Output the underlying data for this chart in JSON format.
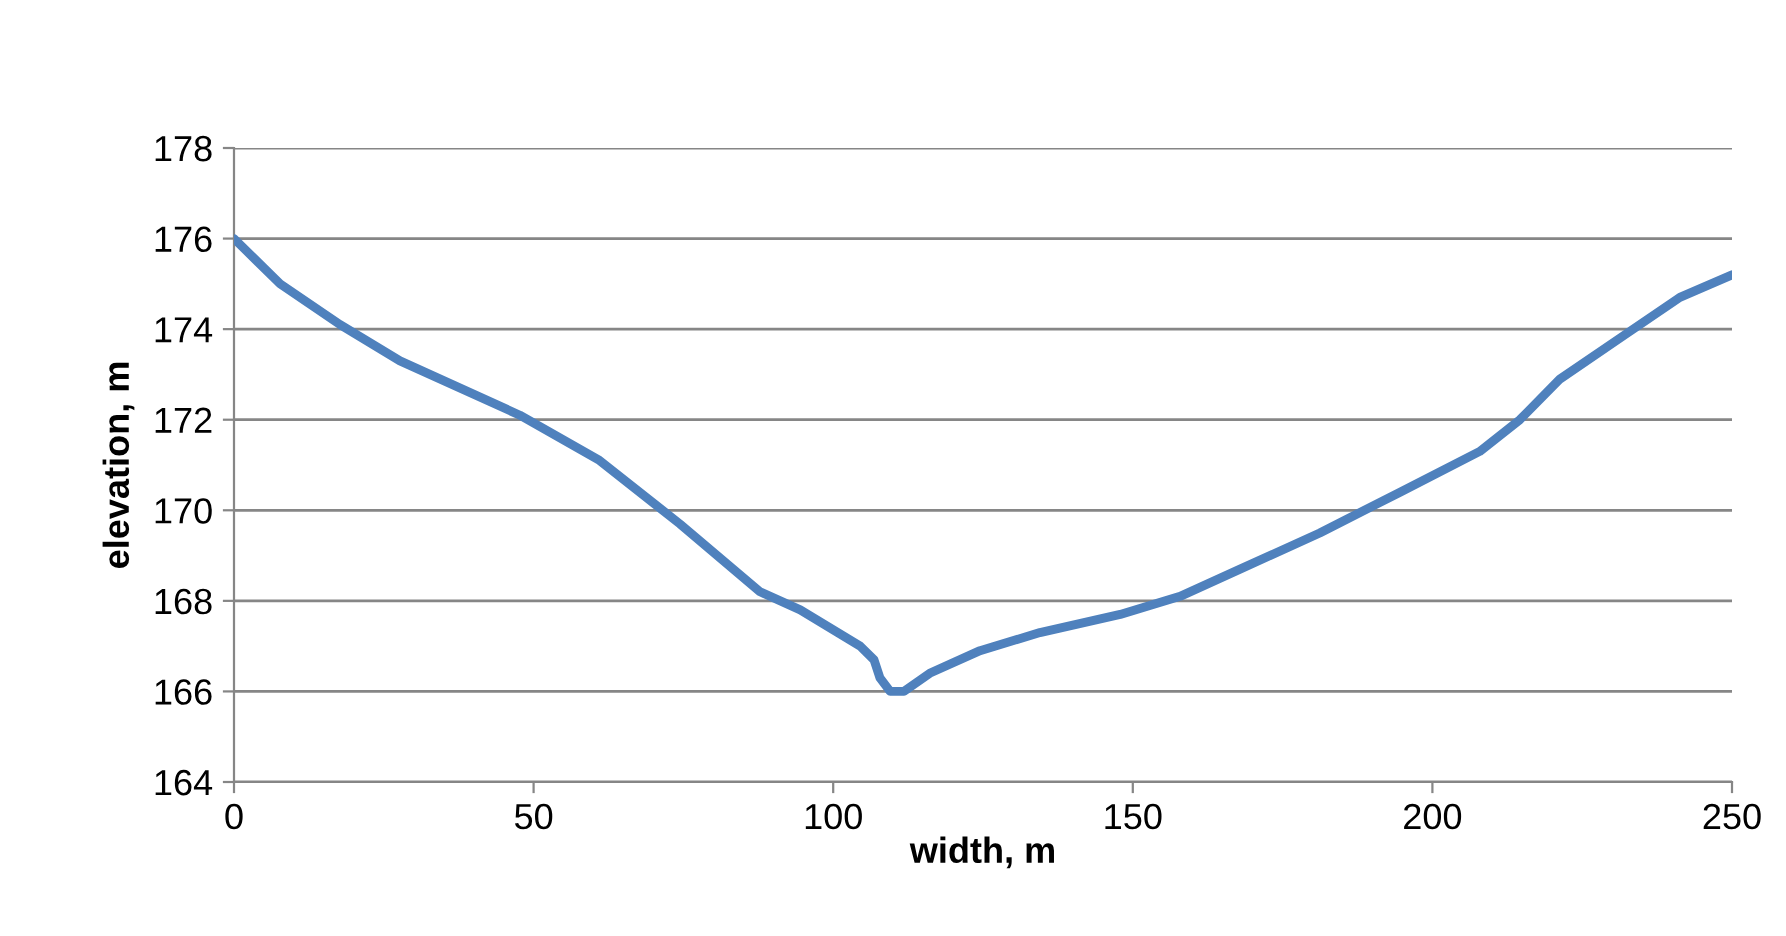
{
  "chart_data": {
    "type": "line",
    "xlabel": "width, m",
    "ylabel": "elevation, m",
    "series": [
      {
        "color": "#4f81bd",
        "x": [
          0,
          7.7,
          17.7,
          27.7,
          47.7,
          61,
          74.4,
          87.8,
          94.5,
          104.5,
          106.8,
          107.8,
          109.5,
          111.8,
          116.1,
          124.5,
          134.5,
          147.9,
          157.9,
          167.9,
          181.2,
          194.6,
          207.9,
          214.6,
          221.3,
          231.3,
          241.3,
          250
        ],
        "values": [
          176,
          175.0,
          174.1,
          173.3,
          172.1,
          171.1,
          169.7,
          168.2,
          167.8,
          167.0,
          166.7,
          166.3,
          166.0,
          166.0,
          166.4,
          166.9,
          167.3,
          167.7,
          168.1,
          168.7,
          169.5,
          170.4,
          171.3,
          172.0,
          172.9,
          173.8,
          174.7,
          175.2
        ]
      }
    ],
    "xlim": [
      0,
      250
    ],
    "xticks": [
      0,
      50,
      100,
      150,
      200,
      250
    ],
    "ylim": [
      164,
      178
    ],
    "yticks": [
      164,
      166,
      168,
      170,
      172,
      174,
      176,
      178
    ],
    "grid": "y",
    "legend": false,
    "marker": "none",
    "line_style": "solid"
  }
}
